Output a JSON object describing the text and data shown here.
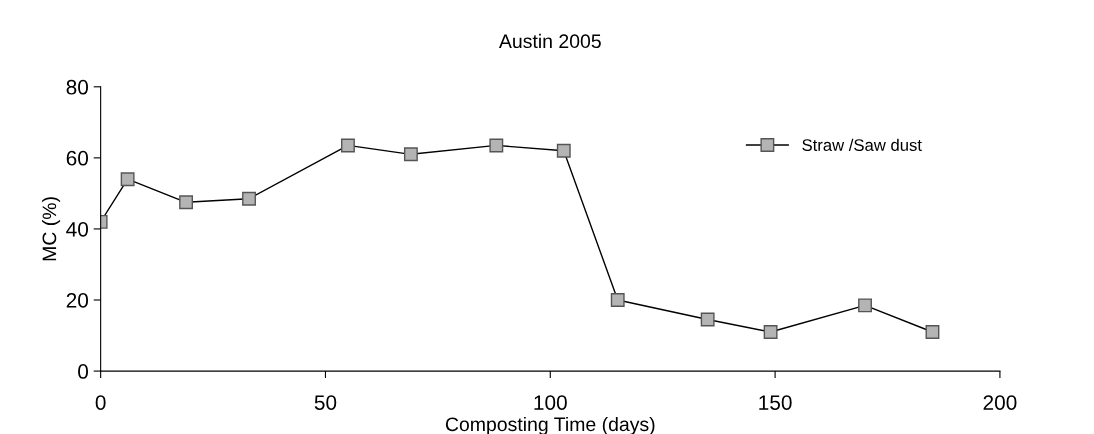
{
  "chart_data": {
    "type": "line",
    "title": "Austin 2005",
    "xlabel": "Composting Time (days)",
    "ylabel": "MC (%)",
    "x": [
      0,
      6,
      19,
      33,
      55,
      69,
      88,
      103,
      115,
      135,
      149,
      170,
      185
    ],
    "series": [
      {
        "name": "Straw /Saw dust",
        "color": "#000000",
        "values": [
          42,
          54,
          47.5,
          48.5,
          63.5,
          61,
          63.5,
          62,
          20,
          14.5,
          11,
          18.5,
          11
        ]
      }
    ],
    "xlim": [
      0,
      200
    ],
    "xticks": [
      0,
      50,
      100,
      150,
      200
    ],
    "ylim": [
      0,
      80
    ],
    "yticks": [
      0,
      20,
      40,
      60,
      80
    ],
    "grid": false,
    "legend": "top right",
    "marker": "square",
    "line_style": "solid"
  }
}
